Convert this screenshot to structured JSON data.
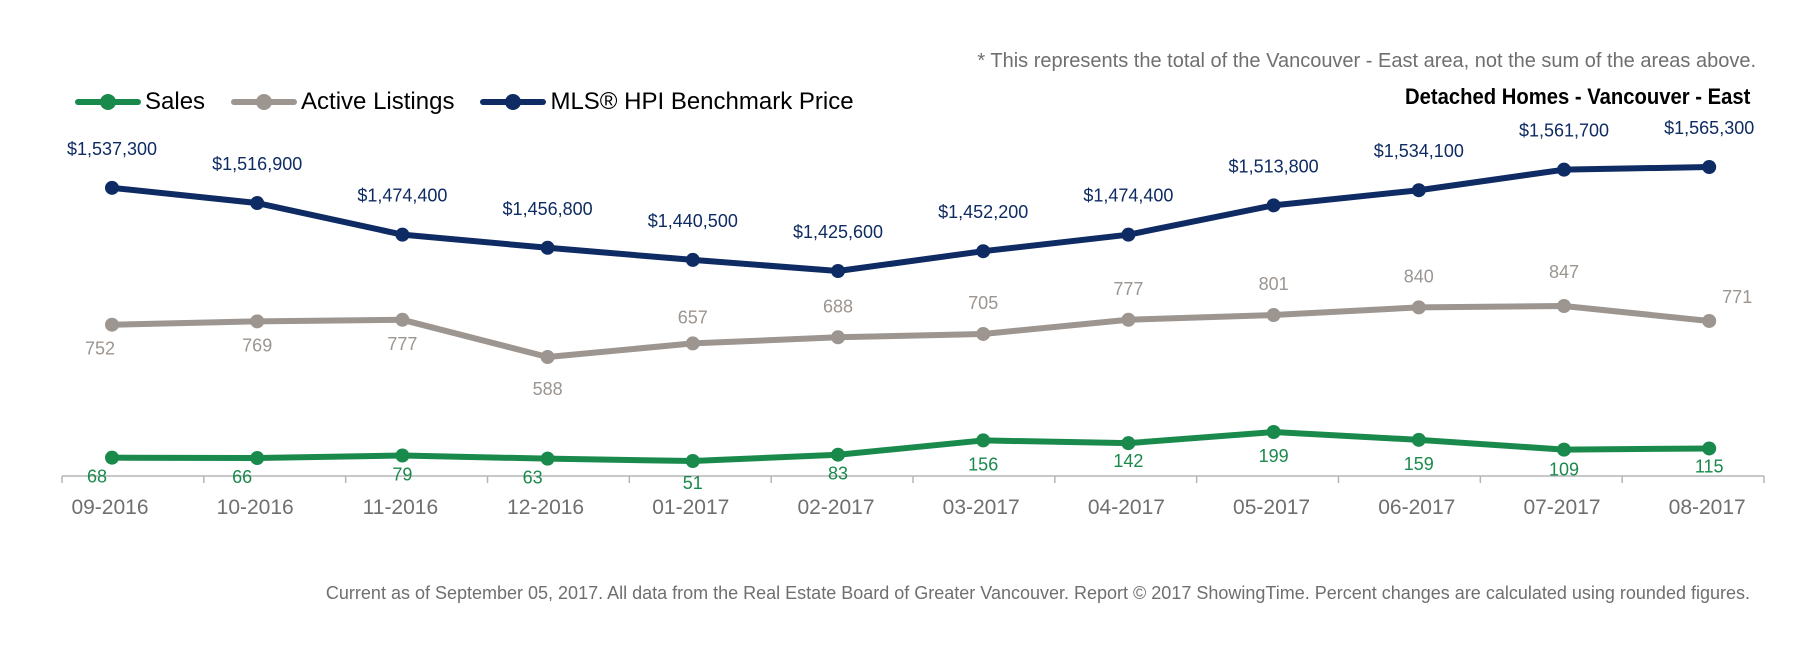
{
  "note": "* This represents the total of the Vancouver - East area, not the sum of the areas above.",
  "footer": "Current as of September 05, 2017. All data from the Real Estate Board of Greater Vancouver. Report © 2017 ShowingTime. Percent changes are calculated using rounded figures.",
  "colors": {
    "sales": "#1a8a4c",
    "listings": "#9c9590",
    "hpi": "#0f2b63",
    "axis": "#b5b5b5",
    "tick_text": "#6f6f6f"
  },
  "chart_data": {
    "type": "line",
    "title": "Detached Homes - Vancouver - East",
    "categories": [
      "09-2016",
      "10-2016",
      "11-2016",
      "12-2016",
      "01-2017",
      "02-2017",
      "03-2017",
      "04-2017",
      "05-2017",
      "06-2017",
      "07-2017",
      "08-2017"
    ],
    "legend_position": "top-left",
    "grid": false,
    "series": [
      {
        "name": "Sales",
        "key": "sales",
        "values": [
          68,
          66,
          79,
          63,
          51,
          83,
          156,
          142,
          199,
          159,
          109,
          115
        ],
        "labels": [
          "68",
          "66",
          "79",
          "63",
          "51",
          "83",
          "156",
          "142",
          "199",
          "159",
          "109",
          "115"
        ]
      },
      {
        "name": "Active Listings",
        "key": "listings",
        "values": [
          752,
          769,
          777,
          588,
          657,
          688,
          705,
          777,
          801,
          840,
          847,
          771
        ],
        "labels": [
          "752",
          "769",
          "777",
          "588",
          "657",
          "688",
          "705",
          "777",
          "801",
          "840",
          "847",
          "771"
        ]
      },
      {
        "name": "MLS® HPI Benchmark Price",
        "key": "hpi",
        "values": [
          1537300,
          1516900,
          1474400,
          1456800,
          1440500,
          1425600,
          1452200,
          1474400,
          1513800,
          1534100,
          1561700,
          1565300
        ],
        "labels": [
          "$1,537,300",
          "$1,516,900",
          "$1,474,400",
          "$1,456,800",
          "$1,440,500",
          "$1,425,600",
          "$1,452,200",
          "$1,474,400",
          "$1,513,800",
          "$1,534,100",
          "$1,561,700",
          "$1,565,300"
        ]
      }
    ]
  }
}
